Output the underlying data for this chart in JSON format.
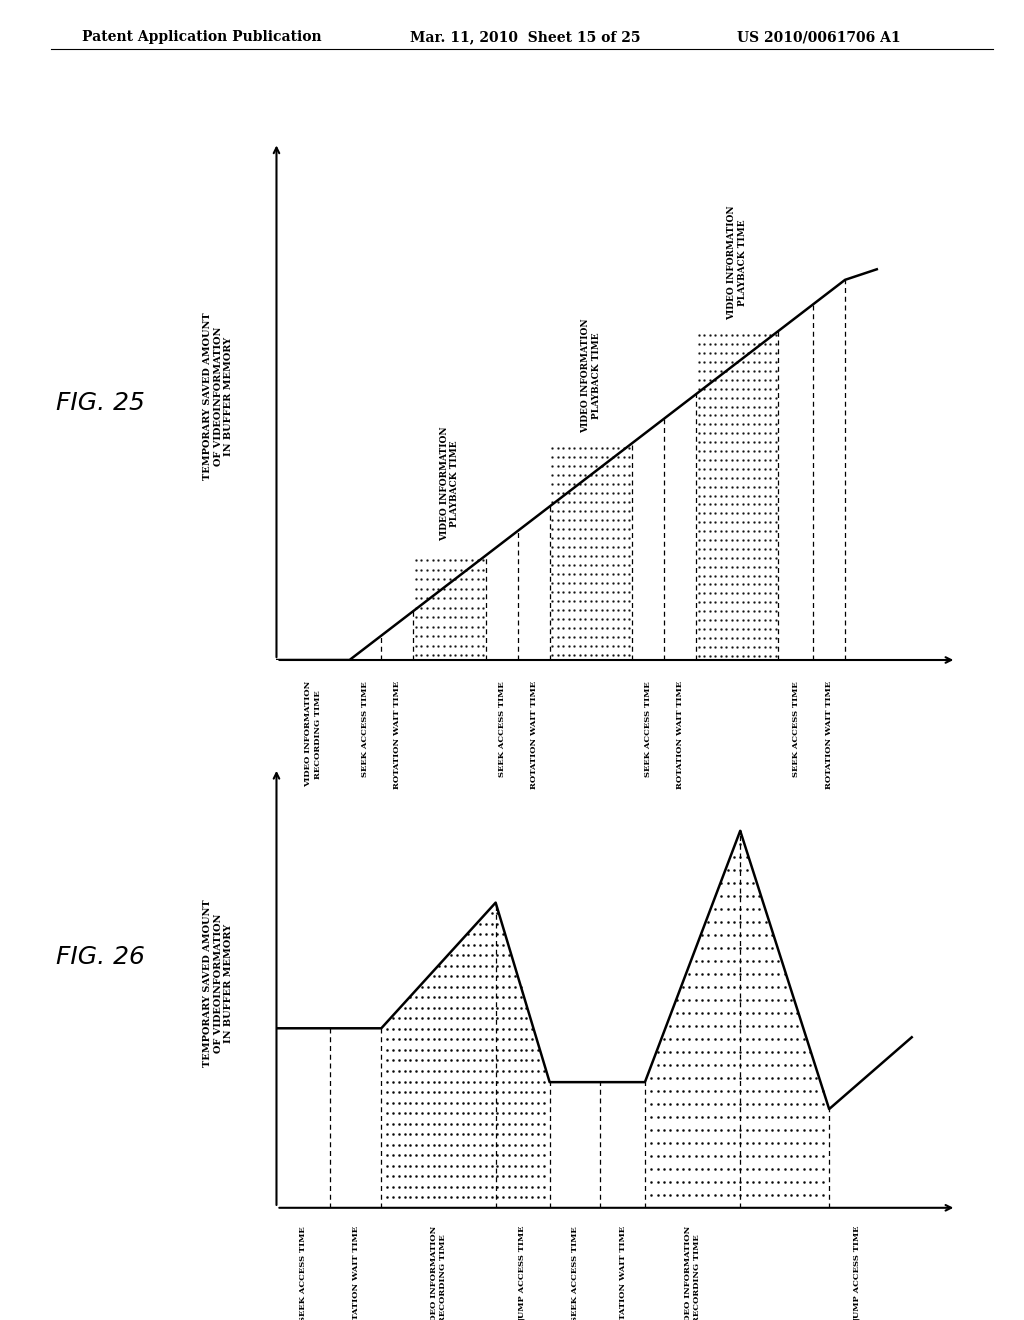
{
  "header_left": "Patent Application Publication",
  "header_mid": "Mar. 11, 2010  Sheet 15 of 25",
  "header_right": "US 2010/0061706 A1",
  "fig25_label": "FIG. 25",
  "fig26_label": "FIG. 26",
  "fig25_ylabel": "TEMPORARY SAVED AMOUNT\nOF VIDEOINFORMATION\nIN BUFFER MEMORY",
  "fig26_ylabel": "TEMPORARY SAVED AMOUNT\nOF VIDEOINFORMATION\nIN BUFFER MEMORY",
  "fig25_xtick_labels": [
    "VIDEO INFORMATION\nRECORDING TIME",
    "SEEK ACCESS TIME",
    "ROTATION WAIT TIME",
    "SEEK ACCESS TIME",
    "ROTATION WAIT TIME",
    "SEEK ACCESS TIME",
    "ROTATION WAIT TIME",
    "SEEK ACCESS TIME",
    "ROTATION WAIT TIME"
  ],
  "fig25_top_labels": [
    "VIDEO INFORMATION\nPLAYBACK TIME",
    "VIDEO INFORMATION\nPLAYBACK TIME",
    "VIDEO INFORMATION\nPLAYBACK TIME"
  ],
  "fig26_xtick_labels": [
    "SEEK ACCESS TIME",
    "ROTATION WAIT TIME",
    "VIDEO INFORMATION\nRECORDING TIME",
    "JUMP ACCESS TIME",
    "SEEK ACCESS TIME",
    "ROTATION WAIT TIME",
    "VIDEO INFORMATION\nRECORDING TIME",
    "JUMP ACCESS TIME"
  ],
  "background_color": "#ffffff",
  "line_color": "#000000"
}
